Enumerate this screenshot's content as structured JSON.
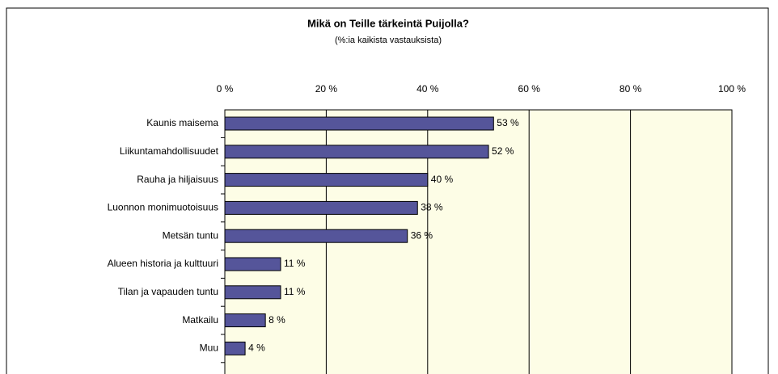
{
  "chart_data": {
    "type": "bar",
    "orientation": "horizontal",
    "title": "Mikä on Teille tärkeintä Puijolla?",
    "subtitle": "(%:ia kaikista vastauksista)",
    "categories": [
      "Kaunis maisema",
      "Liikuntamahdollisuudet",
      "Rauha ja hiljaisuus",
      "Luonnon monimuotoisuus",
      "Metsän tuntu",
      "Alueen historia ja kulttuuri",
      "Tilan ja vapauden tuntu",
      "Matkailu",
      "Muu"
    ],
    "values": [
      53,
      52,
      40,
      38,
      36,
      11,
      11,
      8,
      4
    ],
    "value_labels": [
      "53 %",
      "52 %",
      "40 %",
      "38 %",
      "36 %",
      "11 %",
      "11 %",
      "8 %",
      "4 %"
    ],
    "color": "#55559a",
    "xlim": [
      0,
      100
    ],
    "xticks": [
      {
        "value": 0,
        "label": "0 %"
      },
      {
        "value": 20,
        "label": "20 %"
      },
      {
        "value": 40,
        "label": "40 %"
      },
      {
        "value": 60,
        "label": "60 %"
      },
      {
        "value": 80,
        "label": "80 %"
      },
      {
        "value": 100,
        "label": "100 %"
      }
    ],
    "grid": true
  }
}
